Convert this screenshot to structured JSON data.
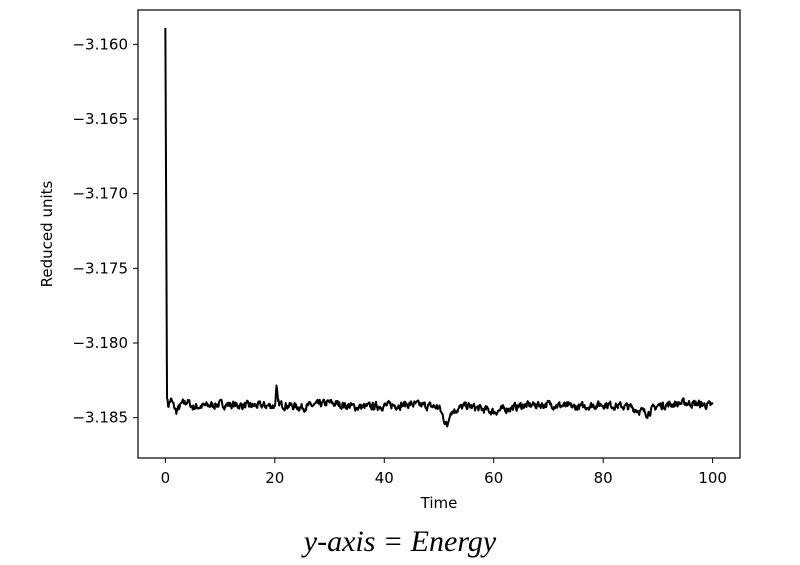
{
  "chart_data": {
    "type": "line",
    "title": "",
    "xlabel": "Time",
    "ylabel": "Reduced units",
    "xlim": [
      -5,
      105
    ],
    "ylim": [
      -3.1877,
      -3.1577
    ],
    "xticks": [
      0,
      20,
      40,
      60,
      80,
      100
    ],
    "yticks": [
      -3.16,
      -3.165,
      -3.17,
      -3.175,
      -3.18,
      -3.185
    ],
    "ytick_labels": [
      "−3.160",
      "−3.165",
      "−3.170",
      "−3.175",
      "−3.180",
      "−3.185"
    ],
    "grid": false,
    "line_color": "#000000",
    "series": [
      {
        "x": [
          0,
          0.3,
          0.5,
          1,
          2,
          3,
          4,
          5,
          10,
          15,
          20,
          20.3,
          20.6,
          25,
          30,
          35,
          40,
          45,
          50,
          51.5,
          52,
          55,
          60,
          65,
          70,
          75,
          80,
          85,
          88,
          90,
          95,
          100
        ],
        "y": [
          -3.1589,
          -3.1835,
          -3.1842,
          -3.1838,
          -3.1846,
          -3.1841,
          -3.1839,
          -3.1843,
          -3.1841,
          -3.1842,
          -3.1842,
          -3.183,
          -3.1841,
          -3.1843,
          -3.184,
          -3.1843,
          -3.1842,
          -3.1841,
          -3.1843,
          -3.1856,
          -3.1846,
          -3.1842,
          -3.1846,
          -3.1842,
          -3.1841,
          -3.1843,
          -3.1841,
          -3.1843,
          -3.1847,
          -3.1842,
          -3.184,
          -3.1842
        ],
        "noise_amplitude": 0.0004
      }
    ]
  },
  "caption": "y-axis = Energy"
}
